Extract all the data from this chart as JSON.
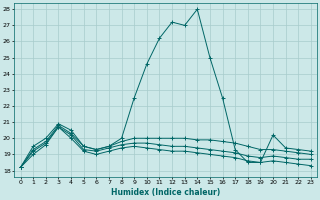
{
  "title": "",
  "xlabel": "Humidex (Indice chaleur)",
  "xlim": [
    -0.5,
    23.5
  ],
  "ylim": [
    17.6,
    28.4
  ],
  "yticks": [
    18,
    19,
    20,
    21,
    22,
    23,
    24,
    25,
    26,
    27,
    28
  ],
  "xticks": [
    0,
    1,
    2,
    3,
    4,
    5,
    6,
    7,
    8,
    9,
    10,
    11,
    12,
    13,
    14,
    15,
    16,
    17,
    18,
    19,
    20,
    21,
    22,
    23
  ],
  "bg_color": "#cce8e8",
  "grid_color": "#a8cccc",
  "line_color": "#006666",
  "lines": [
    {
      "x": [
        0,
        1,
        2,
        3,
        4,
        5,
        6,
        7,
        8,
        9,
        10,
        11,
        12,
        13,
        14,
        15,
        16,
        17,
        18,
        19,
        20,
        21,
        22,
        23
      ],
      "y": [
        18.2,
        19.5,
        20.0,
        20.9,
        20.5,
        19.5,
        19.3,
        19.5,
        20.0,
        22.5,
        24.6,
        26.2,
        27.2,
        27.0,
        28.0,
        25.0,
        22.5,
        19.3,
        18.5,
        18.5,
        20.2,
        19.4,
        19.3,
        19.2
      ]
    },
    {
      "x": [
        0,
        1,
        2,
        3,
        4,
        5,
        6,
        7,
        8,
        9,
        10,
        11,
        12,
        13,
        14,
        15,
        16,
        17,
        18,
        19,
        20,
        21,
        22,
        23
      ],
      "y": [
        18.2,
        19.3,
        19.8,
        20.8,
        20.3,
        19.5,
        19.3,
        19.5,
        19.8,
        20.0,
        20.0,
        20.0,
        20.0,
        20.0,
        19.9,
        19.9,
        19.8,
        19.7,
        19.5,
        19.3,
        19.3,
        19.2,
        19.1,
        19.0
      ]
    },
    {
      "x": [
        0,
        1,
        2,
        3,
        4,
        5,
        6,
        7,
        8,
        9,
        10,
        11,
        12,
        13,
        14,
        15,
        16,
        17,
        18,
        19,
        20,
        21,
        22,
        23
      ],
      "y": [
        18.2,
        19.2,
        19.7,
        20.7,
        20.2,
        19.3,
        19.2,
        19.4,
        19.6,
        19.7,
        19.7,
        19.6,
        19.5,
        19.5,
        19.4,
        19.3,
        19.2,
        19.1,
        18.9,
        18.8,
        18.9,
        18.8,
        18.7,
        18.7
      ]
    },
    {
      "x": [
        0,
        1,
        2,
        3,
        4,
        5,
        6,
        7,
        8,
        9,
        10,
        11,
        12,
        13,
        14,
        15,
        16,
        17,
        18,
        19,
        20,
        21,
        22,
        23
      ],
      "y": [
        18.2,
        19.0,
        19.6,
        20.7,
        20.0,
        19.2,
        19.0,
        19.2,
        19.4,
        19.5,
        19.4,
        19.3,
        19.2,
        19.2,
        19.1,
        19.0,
        18.9,
        18.8,
        18.6,
        18.5,
        18.6,
        18.5,
        18.4,
        18.3
      ]
    }
  ]
}
